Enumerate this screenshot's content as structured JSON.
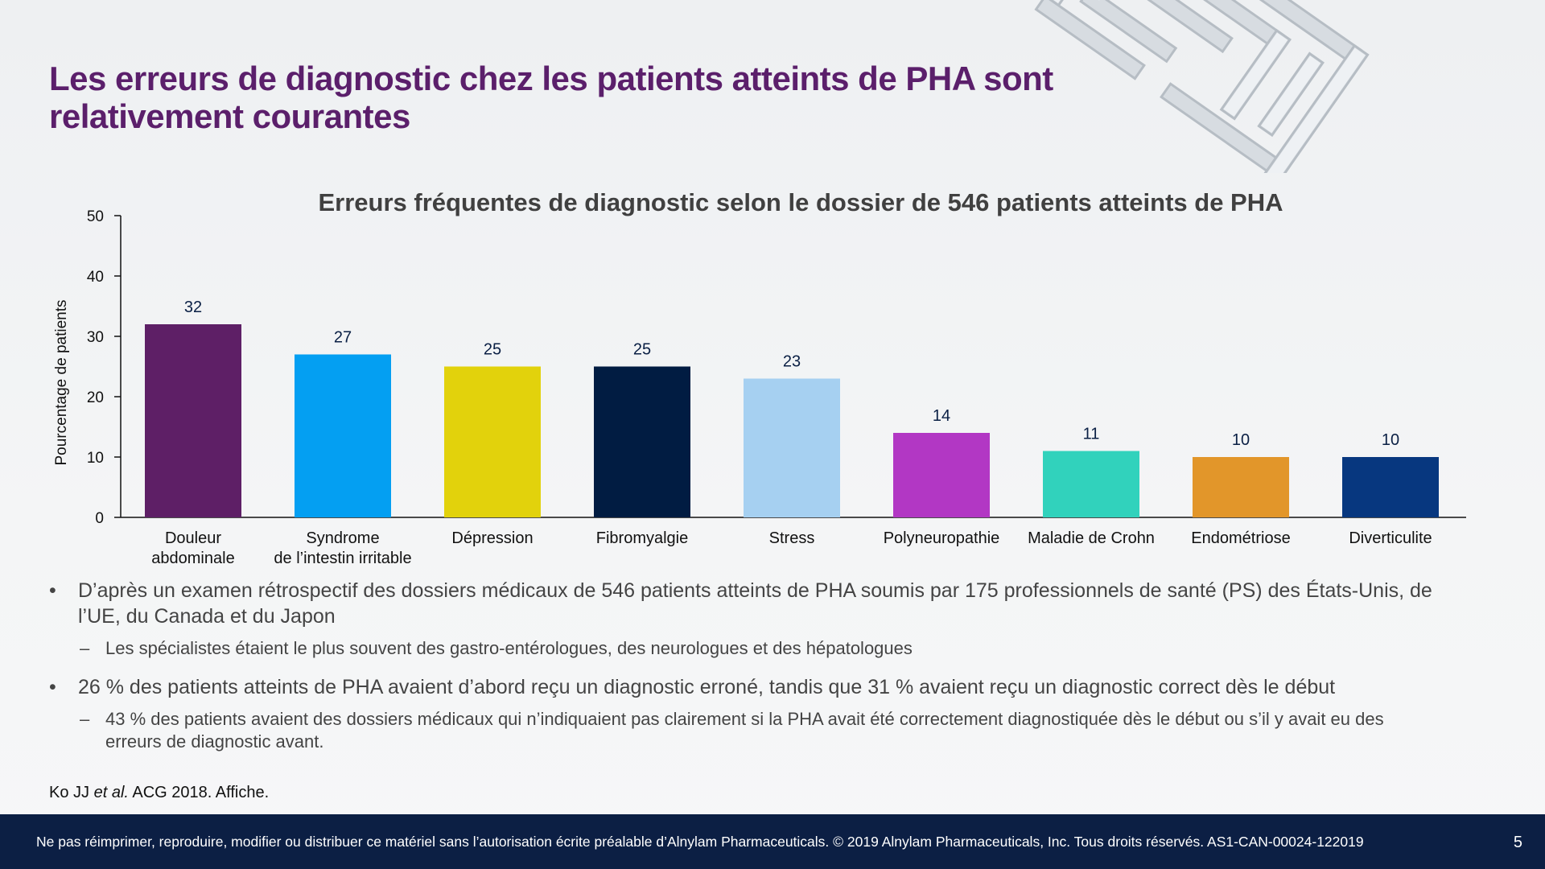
{
  "slide": {
    "title_line1": "Les erreurs de diagnostic chez les patients atteints de PHA sont",
    "title_line2": "relativement courantes",
    "bullets": [
      {
        "text": "D’après un examen rétrospectif des dossiers médicaux de 546 patients atteints de PHA soumis par 175 professionnels de santé (PS) des États-Unis, de l’UE, du Canada et du Japon",
        "sub": "Les spécialistes étaient le plus souvent des gastro-entérologues, des neurologues et des hépatologues"
      },
      {
        "text": "26 % des patients atteints de PHA avaient d’abord reçu un diagnostic erroné, tandis que 31 % avaient reçu un diagnostic correct dès le début",
        "sub": "43 % des patients avaient des dossiers médicaux qui n’indiquaient pas clairement si la PHA avait été correctement diagnostiquée dès le début ou s’il y avait eu des erreurs de diagnostic avant."
      }
    ],
    "bullet_symbol": "•",
    "dash_symbol": "–",
    "reference": {
      "pre": "Ko JJ ",
      "italic": "et al.",
      "post": " ACG 2018. Affiche."
    },
    "footer_text": "Ne pas réimprimer, reproduire, modifier ou distribuer ce matériel sans l’autorisation écrite préalable d’Alnylam Pharmaceuticals. © 2019 Alnylam Pharmaceuticals, Inc. Tous droits réservés. AS1-CAN-00024-122019",
    "page_number": "5"
  },
  "chart_data": {
    "type": "bar",
    "title": "Erreurs fréquentes de diagnostic selon le dossier de 546 patients atteints de PHA",
    "ylabel": "Pourcentage de patients",
    "xlabel": "",
    "ylim": [
      0,
      50
    ],
    "yticks": [
      0,
      10,
      20,
      30,
      40,
      50
    ],
    "grid": false,
    "data_labels": true,
    "categories": [
      [
        "Douleur",
        "abdominale"
      ],
      [
        "Syndrome",
        "de l’intestin irritable"
      ],
      [
        "Dépression"
      ],
      [
        "Fibromyalgie"
      ],
      [
        "Stress"
      ],
      [
        "Polyneuropathie"
      ],
      [
        "Maladie de Crohn"
      ],
      [
        "Endométriose"
      ],
      [
        "Diverticulite"
      ]
    ],
    "values": [
      32,
      27,
      25,
      25,
      23,
      14,
      11,
      10,
      10
    ],
    "colors": [
      "#5e1f66",
      "#049ff2",
      "#e2d20c",
      "#011c42",
      "#a6d0f1",
      "#b237c4",
      "#31d2bc",
      "#e2962a",
      "#07377f"
    ],
    "label_color": "#0a1f44",
    "axis_color": "#111111",
    "title_color": "#404040"
  }
}
